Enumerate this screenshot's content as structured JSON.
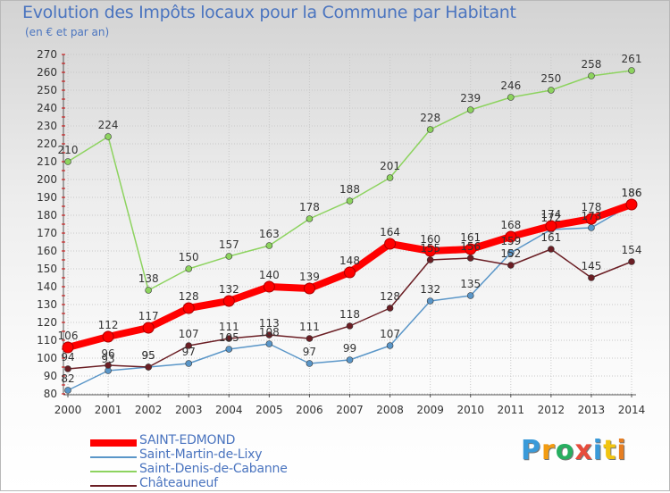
{
  "chart_data": {
    "type": "line",
    "title": "Evolution des Impôts locaux pour la Commune par Habitant",
    "subtitle": "(en € et par an)",
    "xlabel": "",
    "ylabel": "",
    "x": [
      "2000",
      "2001",
      "2002",
      "2003",
      "2004",
      "2005",
      "2006",
      "2007",
      "2008",
      "2009",
      "2010",
      "2011",
      "2012",
      "2013",
      "2014"
    ],
    "ylim": [
      80,
      270
    ],
    "yticks": [
      80,
      90,
      100,
      110,
      120,
      130,
      140,
      150,
      160,
      170,
      180,
      190,
      200,
      210,
      220,
      230,
      240,
      250,
      260,
      270
    ],
    "grid": true,
    "legend_position": "bottom-left",
    "series": [
      {
        "name": "SAINT-EDMOND",
        "color": "#ff0000",
        "values": [
          106,
          112,
          117,
          128,
          132,
          140,
          139,
          148,
          164,
          160,
          161,
          168,
          174,
          178,
          186
        ]
      },
      {
        "name": "Saint-Martin-de-Lixy",
        "color": "#5a96c8",
        "values": [
          82,
          93,
          95,
          97,
          105,
          108,
          97,
          99,
          107,
          132,
          135,
          159,
          172,
          173,
          186
        ]
      },
      {
        "name": "Saint-Denis-de-Cabanne",
        "color": "#8dd35f",
        "values": [
          210,
          224,
          138,
          150,
          157,
          163,
          178,
          188,
          201,
          228,
          239,
          246,
          250,
          258,
          261
        ]
      },
      {
        "name": "Châteauneuf",
        "color": "#6b1e24",
        "values": [
          94,
          96,
          95,
          107,
          111,
          113,
          111,
          118,
          128,
          155,
          156,
          152,
          161,
          145,
          154
        ]
      }
    ]
  },
  "logo": {
    "letters": [
      "P",
      "r",
      "o",
      "x",
      "i",
      "t",
      "i"
    ],
    "colors": [
      "#3a9ad9",
      "#f39c12",
      "#27ae60",
      "#e74c3c",
      "#3a9ad9",
      "#f1c40f",
      "#e67e22"
    ]
  }
}
